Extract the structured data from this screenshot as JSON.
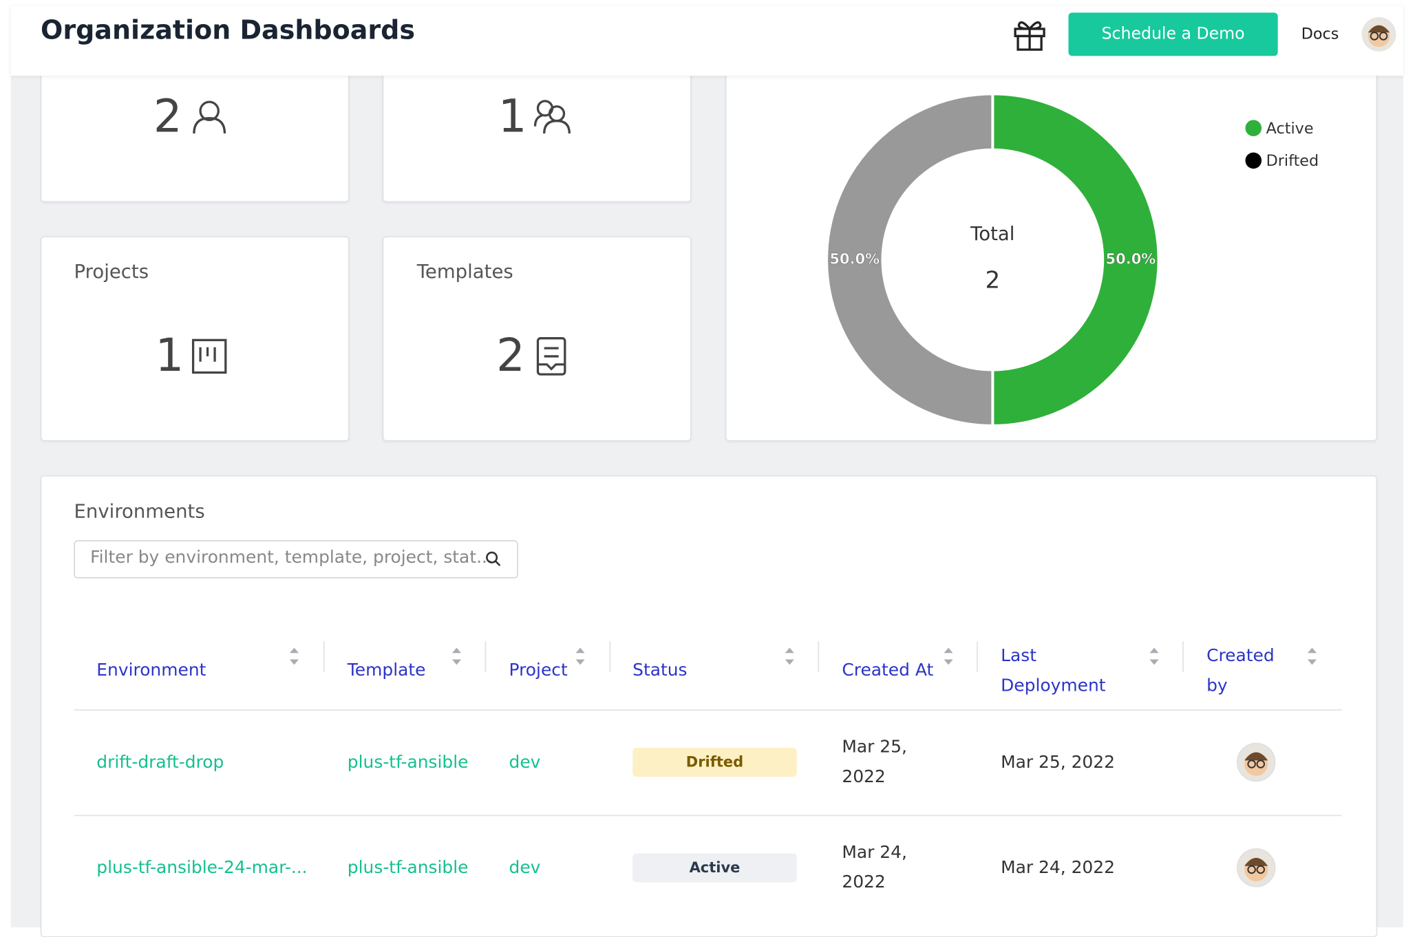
{
  "header": {
    "title": "Organization Dashboards",
    "demo_button": "Schedule a Demo",
    "docs": "Docs"
  },
  "stats": [
    {
      "value": 2
    },
    {
      "value": 1
    },
    {
      "label": "Projects",
      "value": 1
    },
    {
      "label": "Templates",
      "value": 2
    }
  ],
  "chart_data": {
    "type": "pie",
    "donut": true,
    "center_label": "Total",
    "center_value": 2,
    "categories": [
      "Active",
      "Drifted"
    ],
    "values": [
      50,
      50
    ],
    "value_labels": [
      "50.0%",
      "50.0%"
    ],
    "colors": [
      "#2fb03a",
      "#999999"
    ],
    "legend_colors": [
      "#2fb03a",
      "#000000"
    ],
    "legend": "top-right"
  },
  "environments": {
    "title": "Environments",
    "filter_placeholder": "Filter by environment, template, project, stat...",
    "columns": [
      "Environment",
      "Template",
      "Project",
      "Status",
      "Created At",
      "Last Deployment",
      "Created by"
    ],
    "rows": [
      [
        "drift-draft-drop",
        "plus-tf-ansible",
        "dev",
        "Drifted",
        "Mar 25, 2022",
        "Mar 25, 2022"
      ],
      [
        "plus-tf-ansible-24-mar-...",
        "plus-tf-ansible",
        "dev",
        "Active",
        "Mar 24, 2022",
        "Mar 24, 2022"
      ]
    ]
  }
}
